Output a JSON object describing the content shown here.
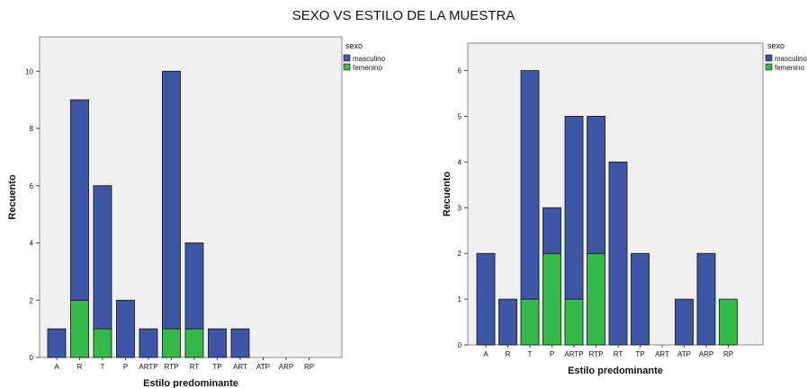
{
  "title": "SEXO VS ESTILO DE LA MUESTRA",
  "colors": {
    "masculino": "#3e56a6",
    "femenino": "#34ba48",
    "plot_bg": "#f0f0f0",
    "axis": "#444444"
  },
  "chart_data": [
    {
      "type": "bar",
      "stacked": true,
      "title": "",
      "xlabel": "Estilo predominante",
      "ylabel": "Recuento",
      "ylim": [
        0,
        11.2
      ],
      "yticks": [
        0,
        2,
        4,
        6,
        8,
        10
      ],
      "legend_title": "sexo",
      "legend_position": "top-right",
      "categories": [
        "A",
        "R",
        "T",
        "P",
        "ARTP",
        "RTP",
        "RT",
        "TP",
        "ART",
        "ATP",
        "ARP",
        "RP"
      ],
      "series": [
        {
          "name": "masculino",
          "values": [
            1,
            7,
            5,
            2,
            1,
            9,
            3,
            1,
            1,
            0,
            0,
            0
          ]
        },
        {
          "name": "femenino",
          "values": [
            0,
            2,
            1,
            0,
            0,
            1,
            1,
            0,
            0,
            0,
            0,
            0
          ]
        }
      ]
    },
    {
      "type": "bar",
      "stacked": true,
      "title": "",
      "xlabel": "Estilo predominante",
      "ylabel": "Recuento",
      "ylim": [
        0,
        6.6
      ],
      "yticks": [
        0,
        1,
        2,
        3,
        4,
        5,
        6
      ],
      "legend_title": "sexo",
      "legend_position": "top-right",
      "categories": [
        "A",
        "R",
        "T",
        "P",
        "ARTP",
        "RTP",
        "RT",
        "TP",
        "ART",
        "ATP",
        "ARP",
        "RP"
      ],
      "series": [
        {
          "name": "masculino",
          "values": [
            2,
            1,
            5,
            1,
            4,
            3,
            4,
            2,
            0,
            1,
            2,
            0
          ]
        },
        {
          "name": "femenino",
          "values": [
            0,
            0,
            1,
            2,
            1,
            2,
            0,
            0,
            0,
            0,
            0,
            1
          ]
        }
      ]
    }
  ]
}
